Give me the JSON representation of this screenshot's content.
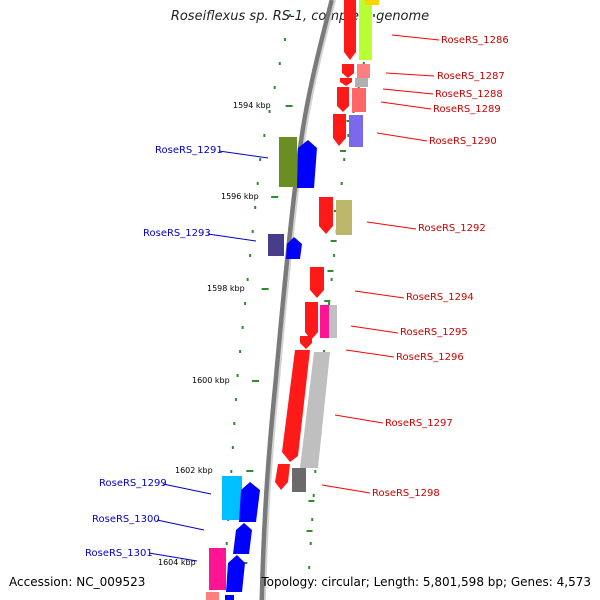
{
  "header": {
    "title": "Roseiflexus sp. RS-1, complete genome"
  },
  "footer": {
    "accession": "Accession: NC_009523",
    "stats": "Topology: circular; Length: 5,801,598 bp; Genes: 4,573"
  },
  "colors": {
    "backbone_dark": "#777777",
    "backbone_light": "#cccccc",
    "tick": "#2e8b2e",
    "label_forward": "#0000cc",
    "label_reverse": "#cc0000",
    "callout_forward": "#0000cc",
    "callout_reverse": "#dd0000"
  },
  "map": {
    "scale_labels": [
      "1594 kbp",
      "1596 kbp",
      "1598 kbp",
      "1600 kbp",
      "1602 kbp",
      "1604 kbp"
    ],
    "gene_labels": {
      "RoseRS_1286": "RoseRS_1286",
      "RoseRS_1287": "RoseRS_1287",
      "RoseRS_1288": "RoseRS_1288",
      "RoseRS_1289": "RoseRS_1289",
      "RoseRS_1290": "RoseRS_1290",
      "RoseRS_1291": "RoseRS_1291",
      "RoseRS_1292": "RoseRS_1292",
      "RoseRS_1293": "RoseRS_1293",
      "RoseRS_1294": "RoseRS_1294",
      "RoseRS_1295": "RoseRS_1295",
      "RoseRS_1296": "RoseRS_1296",
      "RoseRS_1297": "RoseRS_1297",
      "RoseRS_1298": "RoseRS_1298",
      "RoseRS_1299": "RoseRS_1299",
      "RoseRS_1300": "RoseRS_1300",
      "RoseRS_1301": "RoseRS_1301"
    }
  }
}
